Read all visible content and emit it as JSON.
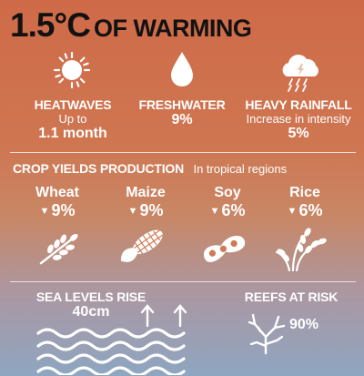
{
  "title": {
    "big": "1.5°C",
    "rest": "OF WARMING"
  },
  "impacts": [
    {
      "icon": "sun-icon",
      "label": "HEATWAVES",
      "sub": "Up to",
      "value": "1.1 month"
    },
    {
      "icon": "water-drop-icon",
      "label": "FRESHWATER",
      "value": "9%"
    },
    {
      "icon": "rain-cloud-icon",
      "label": "HEAVY RAINFALL",
      "sub": "Increase in intensity",
      "value": "5%"
    }
  ],
  "crops": {
    "heading": "CROP YIELDS PRODUCTION",
    "note": "In tropical regions",
    "decrease_marker": "▼",
    "items": [
      {
        "icon": "wheat-icon",
        "name": "Wheat",
        "value": "9%"
      },
      {
        "icon": "maize-icon",
        "name": "Maize",
        "value": "9%"
      },
      {
        "icon": "soy-icon",
        "name": "Soy",
        "value": "6%"
      },
      {
        "icon": "rice-icon",
        "name": "Rice",
        "value": "6%"
      }
    ]
  },
  "sea": {
    "icon": "sea-level-rise-icon",
    "label": "SEA LEVELS RISE",
    "value": "40cm"
  },
  "reefs": {
    "icon": "coral-icon",
    "label": "REEFS AT RISK",
    "value": "90%"
  },
  "colors": {
    "title": "#121212",
    "text": "#ffffff",
    "background_top": "#cf6a48",
    "background_bottom": "#8ea6c1"
  }
}
